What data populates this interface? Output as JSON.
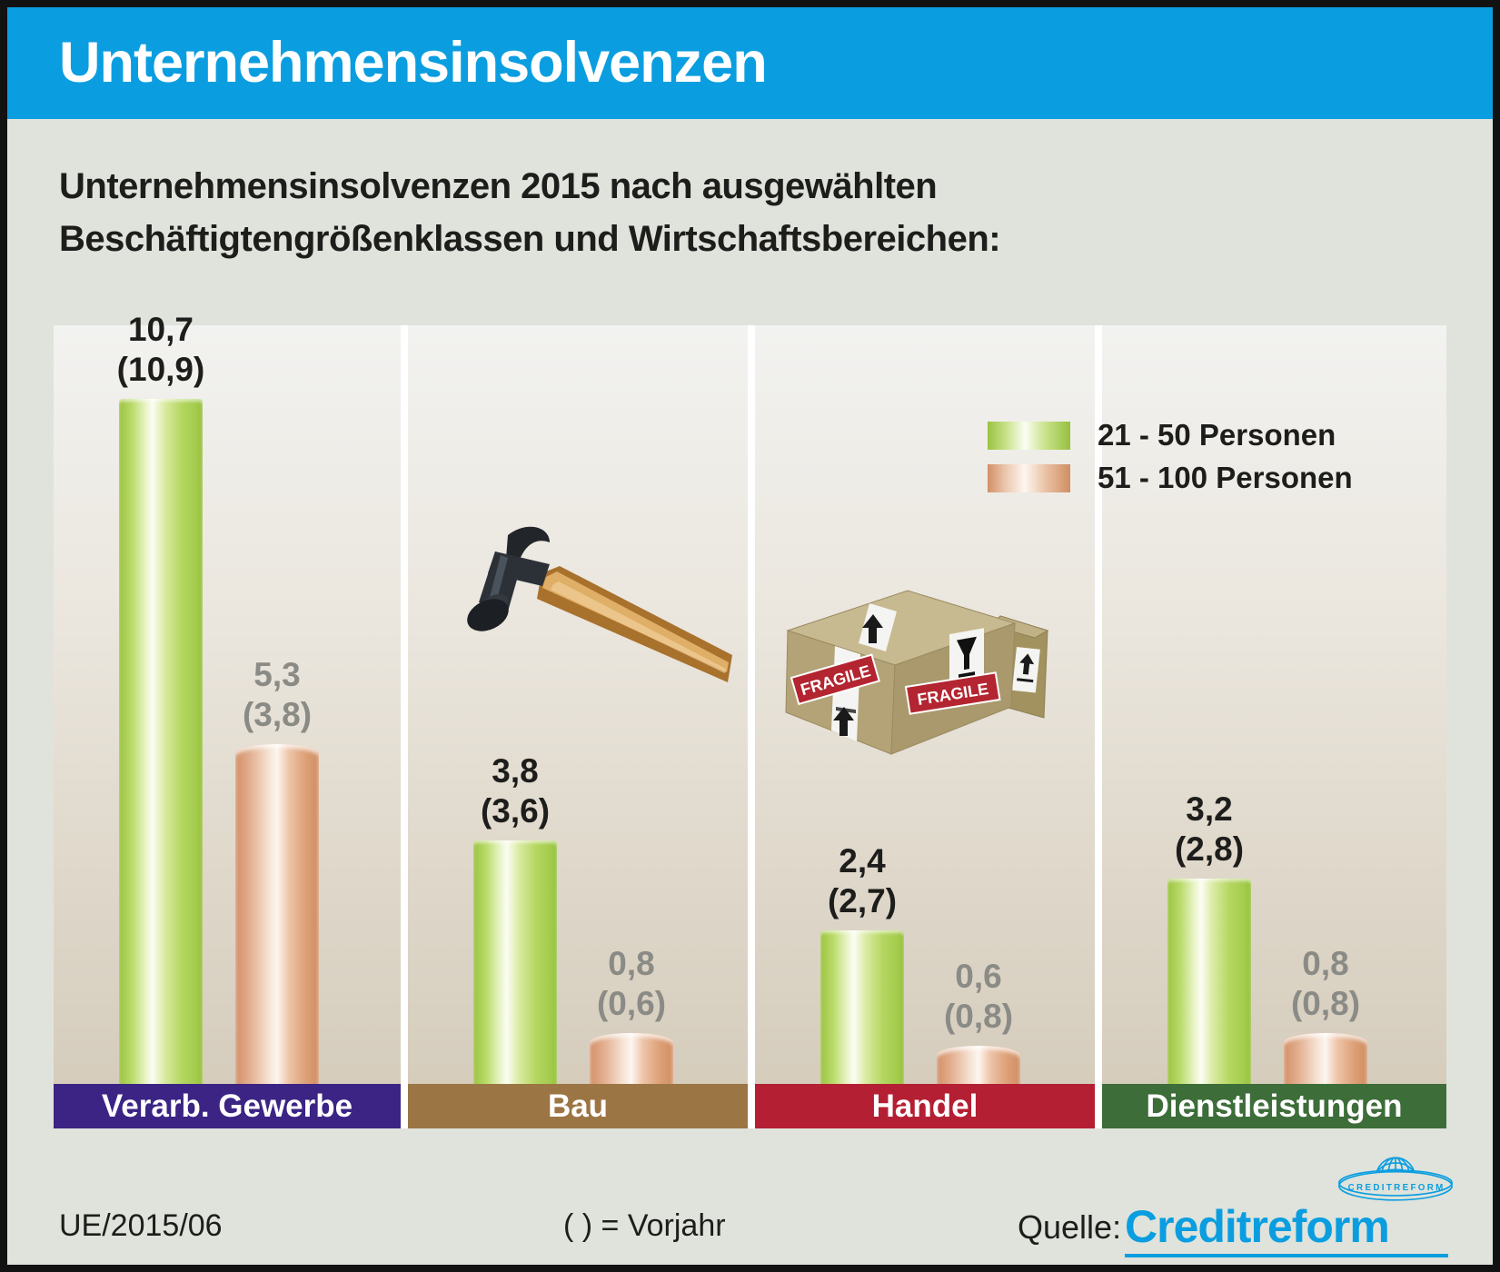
{
  "header": {
    "title": "Unternehmensinsolvenzen"
  },
  "subtitle": {
    "line1": "Unternehmensinsolvenzen 2015 nach ausgewählten",
    "line2": "Beschäftigtengrößenklassen und Wirtschaftsbereichen:"
  },
  "legend": {
    "items": [
      {
        "label": "21 - 50 Personen",
        "swatch": "green"
      },
      {
        "label": "51 - 100 Personen",
        "swatch": "salmon"
      }
    ]
  },
  "chart_data": {
    "type": "bar",
    "title": "Unternehmensinsolvenzen 2015 nach ausgewählten Beschäftigtengrößenklassen und Wirtschaftsbereichen",
    "categories": [
      "Verarb. Gewerbe",
      "Bau",
      "Handel",
      "Dienstleistungen"
    ],
    "series": [
      {
        "name": "21 - 50 Personen",
        "values": [
          10.7,
          3.8,
          2.4,
          3.2
        ],
        "previous_year_values": [
          10.9,
          3.6,
          2.7,
          2.8
        ]
      },
      {
        "name": "51 - 100 Personen",
        "values": [
          5.3,
          0.8,
          0.6,
          0.8
        ],
        "previous_year_values": [
          3.8,
          0.6,
          0.8,
          0.8
        ]
      }
    ],
    "value_note": "( ) = Vorjahr",
    "legend_position": "upper right",
    "grid": false,
    "ylim": [
      0,
      11
    ]
  },
  "groups": [
    {
      "label": "Verarb. Gewerbe",
      "green": {
        "value": "10,7",
        "prev": "(10,9)"
      },
      "salmon": {
        "value": "5,3",
        "prev": "(3,8)"
      }
    },
    {
      "label": "Bau",
      "green": {
        "value": "3,8",
        "prev": "(3,6)"
      },
      "salmon": {
        "value": "0,8",
        "prev": "(0,6)"
      }
    },
    {
      "label": "Handel",
      "green": {
        "value": "2,4",
        "prev": "(2,7)"
      },
      "salmon": {
        "value": "0,6",
        "prev": "(0,8)"
      }
    },
    {
      "label": "Dienstleistungen",
      "green": {
        "value": "3,2",
        "prev": "(2,8)"
      },
      "salmon": {
        "value": "0,8",
        "prev": "(0,8)"
      }
    }
  ],
  "icons": {
    "bau": "hammer-icon",
    "handel": "fragile-boxes-icon",
    "source": "creditreform-globe-logo",
    "fragile_text": "FRAGILE"
  },
  "footer": {
    "reference": "UE/2015/06",
    "note": "( ) = Vorjahr",
    "source_label": "Quelle:",
    "source_name": "Creditreform",
    "logo_band_text": "CREDITREFORM"
  },
  "colors": {
    "header_blue": "#0a9ee0",
    "page_background": "#dfe3dc",
    "series_green": "#aad253",
    "series_salmon": "#dda27e",
    "label_verarb_gewerbe": "#3b2484",
    "label_bau": "#9c7544",
    "label_handel": "#b41f33",
    "label_dienstleistungen": "#3d6d39",
    "value_text_green_series": "#1d1d1b",
    "value_text_salmon_series": "#8b8b86",
    "creditreform_blue": "#0a9ee0"
  }
}
